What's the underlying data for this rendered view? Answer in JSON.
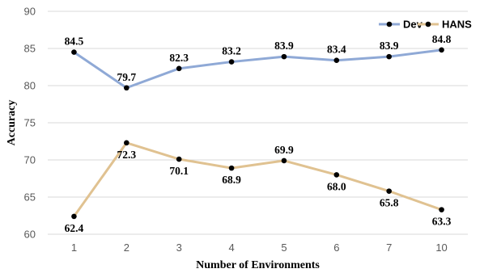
{
  "chart_data": {
    "type": "line",
    "title": "",
    "xlabel": "Number of Environments",
    "ylabel": "Accuracy",
    "categories": [
      "1",
      "2",
      "3",
      "4",
      "5",
      "6",
      "7",
      "10"
    ],
    "ylim": [
      60,
      90
    ],
    "yticks": [
      60,
      65,
      70,
      75,
      80,
      85,
      90
    ],
    "grid": "horizontal",
    "legend_position": "top-right",
    "series": [
      {
        "name": "Dev",
        "color": "#8fa9d6",
        "values": [
          84.5,
          79.7,
          82.3,
          83.2,
          83.9,
          83.4,
          83.9,
          84.8
        ],
        "labels": [
          "84.5",
          "79.7",
          "82.3",
          "83.2",
          "83.9",
          "83.4",
          "83.9",
          "84.8"
        ]
      },
      {
        "name": "HANS",
        "color": "#e0c291",
        "values": [
          62.4,
          72.3,
          70.1,
          68.9,
          69.9,
          68.0,
          65.8,
          63.3
        ],
        "labels": [
          "62.4",
          "72.3",
          "70.1",
          "68.9",
          "69.9",
          "68.0",
          "65.8",
          "63.3"
        ]
      }
    ]
  }
}
